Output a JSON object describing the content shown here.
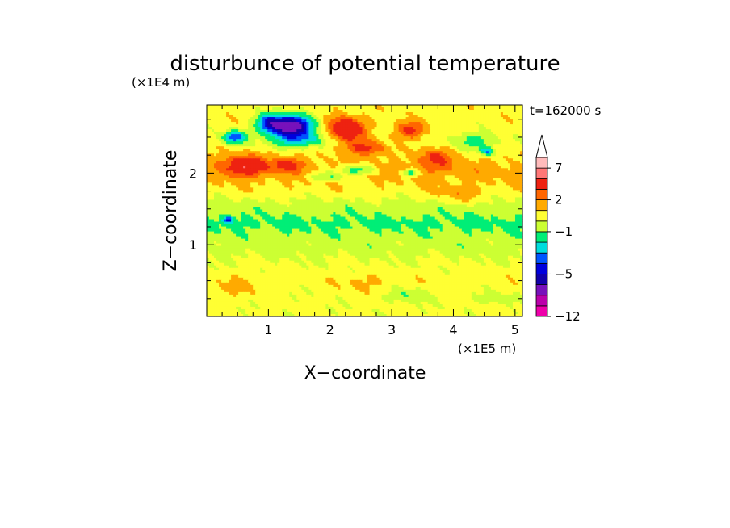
{
  "chart_data": {
    "type": "heatmap",
    "title": "disturbunce of potential temperature",
    "xlabel": "X−coordinate",
    "ylabel": "Z−coordinate",
    "x_scale_label": "(×1E5 m)",
    "y_scale_label": "(×1E4 m)",
    "time_label": "t=162000 s",
    "xlim": [
      0,
      5.12
    ],
    "ylim": [
      0,
      2.95
    ],
    "x_ticks": [
      "1",
      "2",
      "3",
      "4",
      "5"
    ],
    "x_tick_values": [
      1,
      2,
      3,
      4,
      5
    ],
    "y_ticks": [
      "1",
      "2"
    ],
    "y_tick_values": [
      1,
      2
    ],
    "colorbar": {
      "labels": [
        "7",
        "2",
        "−1",
        "−5",
        "−12"
      ],
      "label_values": [
        7,
        2,
        -1,
        -5,
        -12
      ],
      "levels": [
        -12,
        -10,
        -8,
        -6,
        -5,
        -4,
        -3,
        -2,
        -1,
        0,
        1,
        2,
        3,
        5,
        7,
        9,
        11
      ],
      "colors": [
        "#ee00aa",
        "#bb00aa",
        "#7711bb",
        "#1100aa",
        "#0000dd",
        "#0055ff",
        "#00dddd",
        "#00ee77",
        "#ccff33",
        "#ffff33",
        "#ffaa00",
        "#ff6600",
        "#ee2211",
        "#ff7777",
        "#ffbbbb"
      ],
      "extend": "max"
    },
    "field_description": "filled contours of potential temperature disturbance over x in [0,5.12]e5 m and z in [0,2.95]e4 m",
    "features": {
      "bands": [
        {
          "z": 0.3,
          "value": 0.3
        },
        {
          "z": 0.55,
          "value": 0.6
        },
        {
          "z": 0.95,
          "value": -0.4
        },
        {
          "z": 1.08,
          "value": -0.6
        },
        {
          "z": 1.3,
          "value": -1.3
        },
        {
          "z": 1.55,
          "value": -0.4
        },
        {
          "z": 1.78,
          "value": 0.8
        },
        {
          "z": 2.05,
          "value": 1.5
        },
        {
          "z": 2.4,
          "value": 0.4
        },
        {
          "z": 2.75,
          "value": 0.6
        }
      ],
      "blobs": [
        {
          "x": 1.35,
          "z": 2.65,
          "amp": -7.5,
          "sx": 0.38,
          "sz": 0.16
        },
        {
          "x": 0.45,
          "z": 2.5,
          "amp": -4.5,
          "sx": 0.18,
          "sz": 0.09
        },
        {
          "x": 1.0,
          "z": 2.7,
          "amp": -3.0,
          "sx": 0.2,
          "sz": 0.12
        },
        {
          "x": 2.25,
          "z": 2.6,
          "amp": 4.5,
          "sx": 0.3,
          "sz": 0.18
        },
        {
          "x": 0.6,
          "z": 2.1,
          "amp": 3.5,
          "sx": 0.35,
          "sz": 0.14
        },
        {
          "x": 1.3,
          "z": 2.12,
          "amp": 2.5,
          "sx": 0.25,
          "sz": 0.1
        },
        {
          "x": 2.6,
          "z": 2.35,
          "amp": 3.0,
          "sx": 0.3,
          "sz": 0.1
        },
        {
          "x": 3.3,
          "z": 2.6,
          "amp": 3.0,
          "sx": 0.25,
          "sz": 0.12
        },
        {
          "x": 2.45,
          "z": 2.05,
          "amp": -2.8,
          "sx": 0.3,
          "sz": 0.07
        },
        {
          "x": 3.3,
          "z": 2.0,
          "amp": -3.0,
          "sx": 0.12,
          "sz": 0.05
        },
        {
          "x": 1.95,
          "z": 1.95,
          "amp": -2.2,
          "sx": 0.3,
          "sz": 0.07
        },
        {
          "x": 4.55,
          "z": 2.3,
          "amp": -3.5,
          "sx": 0.12,
          "sz": 0.06
        },
        {
          "x": 4.35,
          "z": 2.45,
          "amp": -2.0,
          "sx": 0.35,
          "sz": 0.12
        },
        {
          "x": 0.35,
          "z": 1.35,
          "amp": -3.5,
          "sx": 0.09,
          "sz": 0.05
        },
        {
          "x": 3.7,
          "z": 2.2,
          "amp": 2.2,
          "sx": 0.3,
          "sz": 0.15
        },
        {
          "x": 1.55,
          "z": 2.45,
          "amp": -2.5,
          "sx": 0.45,
          "sz": 0.1
        },
        {
          "x": 4.1,
          "z": 1.7,
          "amp": 1.2,
          "sx": 0.4,
          "sz": 0.12
        },
        {
          "x": 0.55,
          "z": 0.4,
          "amp": 0.8,
          "sx": 0.4,
          "sz": 0.15
        },
        {
          "x": 2.5,
          "z": 0.45,
          "amp": 0.9,
          "sx": 0.35,
          "sz": 0.12
        },
        {
          "x": 3.3,
          "z": 0.3,
          "amp": -1.2,
          "sx": 0.3,
          "sz": 0.1
        },
        {
          "x": 4.7,
          "z": 0.25,
          "amp": -1.0,
          "sx": 0.3,
          "sz": 0.08
        }
      ]
    }
  }
}
